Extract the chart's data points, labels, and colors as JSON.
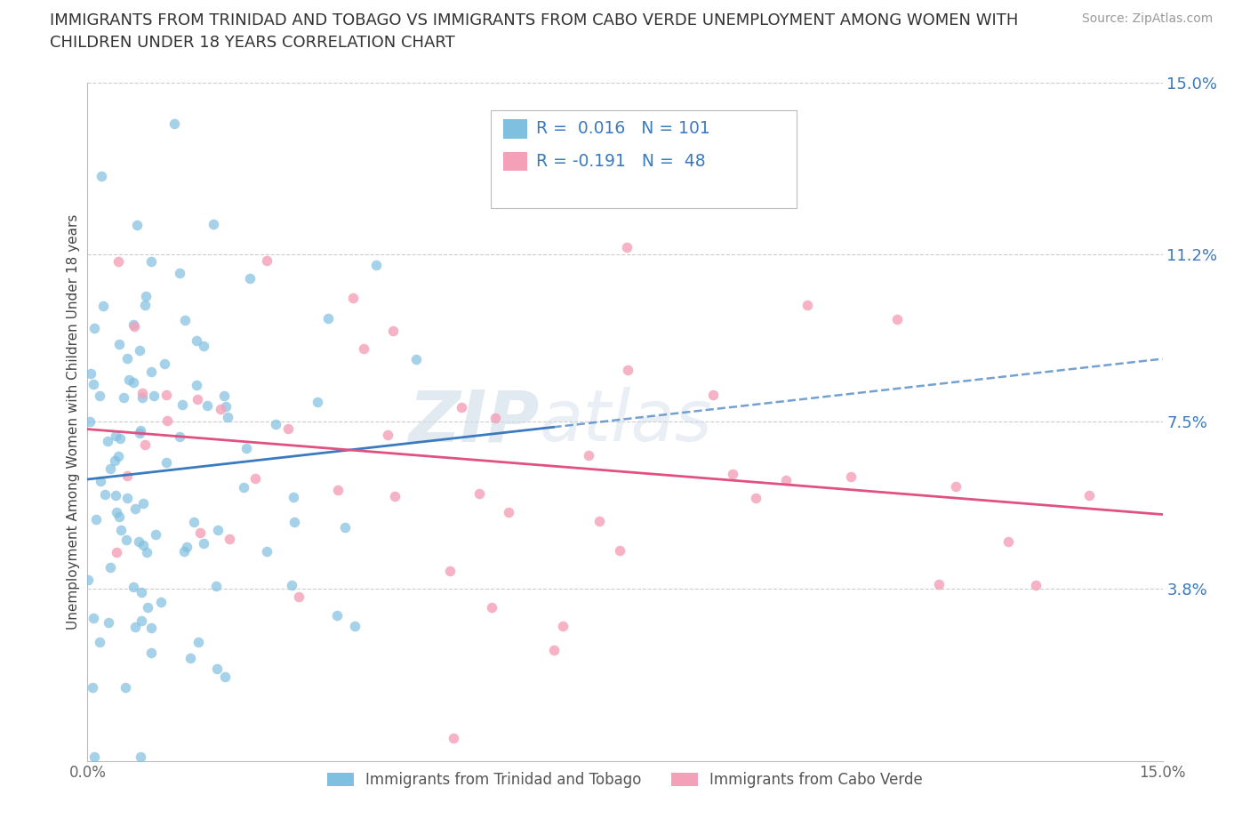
{
  "title_line1": "IMMIGRANTS FROM TRINIDAD AND TOBAGO VS IMMIGRANTS FROM CABO VERDE UNEMPLOYMENT AMONG WOMEN WITH",
  "title_line2": "CHILDREN UNDER 18 YEARS CORRELATION CHART",
  "source": "Source: ZipAtlas.com",
  "ylabel": "Unemployment Among Women with Children Under 18 years",
  "xlim": [
    0.0,
    0.15
  ],
  "ylim": [
    0.0,
    0.15
  ],
  "ytick_vals": [
    0.038,
    0.075,
    0.112,
    0.15
  ],
  "ytick_labels": [
    "3.8%",
    "7.5%",
    "11.2%",
    "15.0%"
  ],
  "xtick_vals": [
    0.0,
    0.15
  ],
  "xtick_labels": [
    "0.0%",
    "15.0%"
  ],
  "legend_labels": [
    "Immigrants from Trinidad and Tobago",
    "Immigrants from Cabo Verde"
  ],
  "R1": 0.016,
  "N1": 101,
  "R2": -0.191,
  "N2": 48,
  "color1": "#7fbfdf",
  "color2": "#f4a0b8",
  "line_color1": "#3a7abf",
  "line_color2": "#e05080",
  "text_color_blue": "#3a7abf",
  "grid_color": "#cccccc",
  "background": "#ffffff",
  "watermark_zip": "ZIP",
  "watermark_atlas": "atlas",
  "title_fontsize": 13,
  "source_fontsize": 10,
  "tick_label_fontsize": 12,
  "ytick_label_fontsize": 13
}
